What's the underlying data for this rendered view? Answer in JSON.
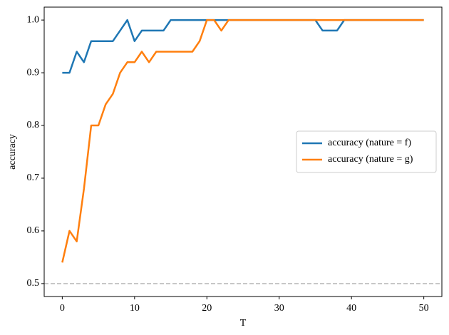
{
  "chart_data": {
    "type": "line",
    "xlabel": "T",
    "ylabel": "accuracy",
    "x": [
      0,
      1,
      2,
      3,
      4,
      5,
      6,
      7,
      8,
      9,
      10,
      11,
      12,
      13,
      14,
      15,
      16,
      17,
      18,
      19,
      20,
      21,
      22,
      23,
      24,
      25,
      26,
      27,
      28,
      29,
      30,
      31,
      32,
      33,
      34,
      35,
      36,
      37,
      38,
      39,
      40,
      41,
      42,
      43,
      44,
      45,
      46,
      47,
      48,
      49,
      50
    ],
    "series": [
      {
        "name": "accuracy (nature = f)",
        "color": "#1f77b4",
        "values": [
          0.9,
          0.9,
          0.94,
          0.92,
          0.96,
          0.96,
          0.96,
          0.96,
          0.98,
          1.0,
          0.96,
          0.98,
          0.98,
          0.98,
          0.98,
          1.0,
          1.0,
          1.0,
          1.0,
          1.0,
          1.0,
          1.0,
          1.0,
          1.0,
          1.0,
          1.0,
          1.0,
          1.0,
          1.0,
          1.0,
          1.0,
          1.0,
          1.0,
          1.0,
          1.0,
          1.0,
          0.98,
          0.98,
          0.98,
          1.0,
          1.0,
          1.0,
          1.0,
          1.0,
          1.0,
          1.0,
          1.0,
          1.0,
          1.0,
          1.0,
          1.0
        ]
      },
      {
        "name": "accuracy (nature = g)",
        "color": "#ff7f0e",
        "values": [
          0.54,
          0.6,
          0.58,
          0.68,
          0.8,
          0.8,
          0.84,
          0.86,
          0.9,
          0.92,
          0.92,
          0.94,
          0.92,
          0.94,
          0.94,
          0.94,
          0.94,
          0.94,
          0.94,
          0.96,
          1.0,
          1.0,
          0.98,
          1.0,
          1.0,
          1.0,
          1.0,
          1.0,
          1.0,
          1.0,
          1.0,
          1.0,
          1.0,
          1.0,
          1.0,
          1.0,
          1.0,
          1.0,
          1.0,
          1.0,
          1.0,
          1.0,
          1.0,
          1.0,
          1.0,
          1.0,
          1.0,
          1.0,
          1.0,
          1.0,
          1.0
        ]
      }
    ],
    "xlim": [
      -2.5,
      52.5
    ],
    "xticks": [
      0,
      10,
      20,
      30,
      40,
      50
    ],
    "ylim": [
      0.4755,
      1.0245
    ],
    "yticks": [
      0.5,
      0.6,
      0.7,
      0.8,
      0.9,
      {
        "value": 1,
        "label": "1.0"
      }
    ],
    "reference_line": {
      "value": 0.5,
      "color": "#bbbbbb"
    },
    "legend": "right"
  }
}
